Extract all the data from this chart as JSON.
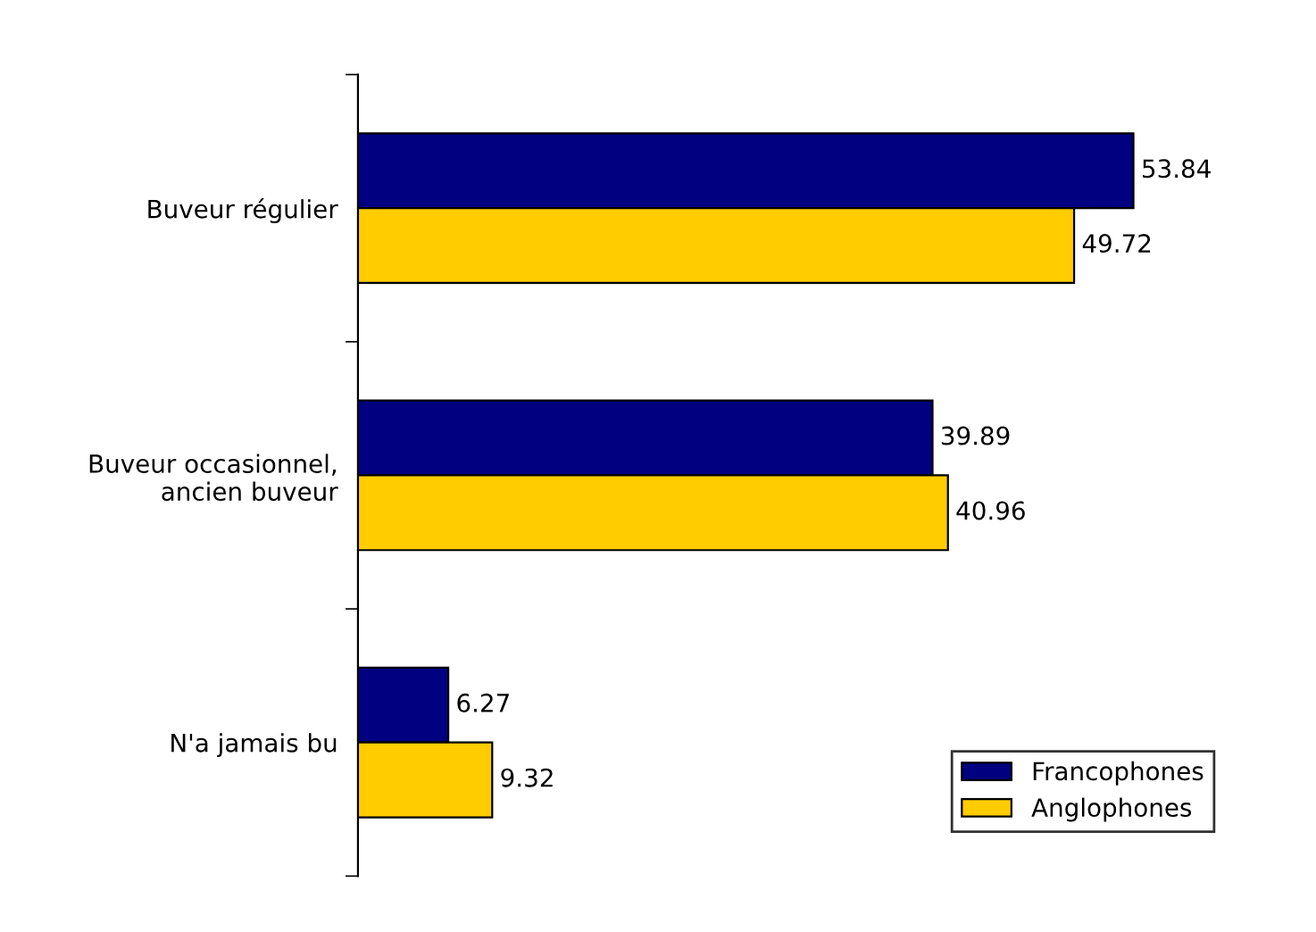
{
  "chart_data": {
    "type": "bar",
    "orientation": "horizontal",
    "categories": [
      "Buveur régulier",
      "Buveur occasionnel,\nancien buveur",
      "N'a jamais bu"
    ],
    "series": [
      {
        "name": "Francophones",
        "color": "#000080",
        "values": [
          53.84,
          39.89,
          6.27
        ]
      },
      {
        "name": "Anglophones",
        "color": "#ffcc00",
        "values": [
          49.72,
          40.96,
          9.32
        ]
      }
    ],
    "data_labels": true,
    "legend": "bottom right",
    "grid": false
  }
}
